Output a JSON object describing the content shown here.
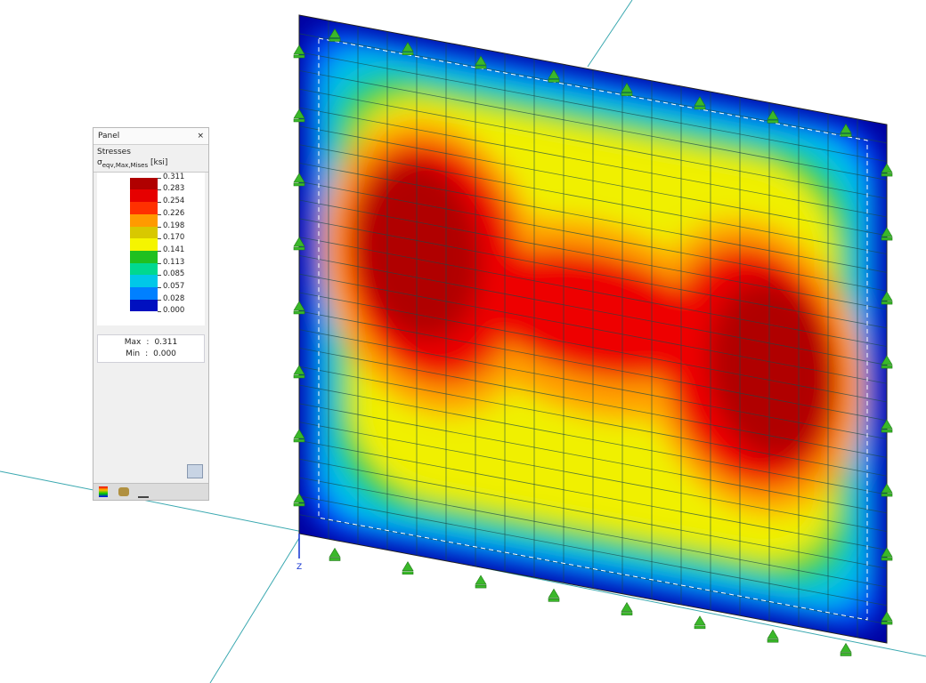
{
  "panel": {
    "title": "Panel",
    "close": "×",
    "heading": "Stresses",
    "quantity": {
      "symbol": "σ",
      "subscript": "eqv,Max,Mises",
      "unit": "[ksi]"
    },
    "legend": {
      "levels": [
        "0.311",
        "0.283",
        "0.254",
        "0.226",
        "0.198",
        "0.170",
        "0.141",
        "0.113",
        "0.085",
        "0.057",
        "0.028",
        "0.000"
      ],
      "colors": [
        "#b00000",
        "#e60000",
        "#ff3000",
        "#ff9a00",
        "#d8c800",
        "#f5f500",
        "#20c020",
        "#00d890",
        "#00c8e8",
        "#0080ff",
        "#0010c0"
      ]
    },
    "extremes": [
      {
        "label": "Max",
        "sep": ":",
        "value": "0.311"
      },
      {
        "label": "Min",
        "sep": ":",
        "value": "0.000"
      }
    ]
  },
  "view": {
    "axis_label": "Z"
  }
}
